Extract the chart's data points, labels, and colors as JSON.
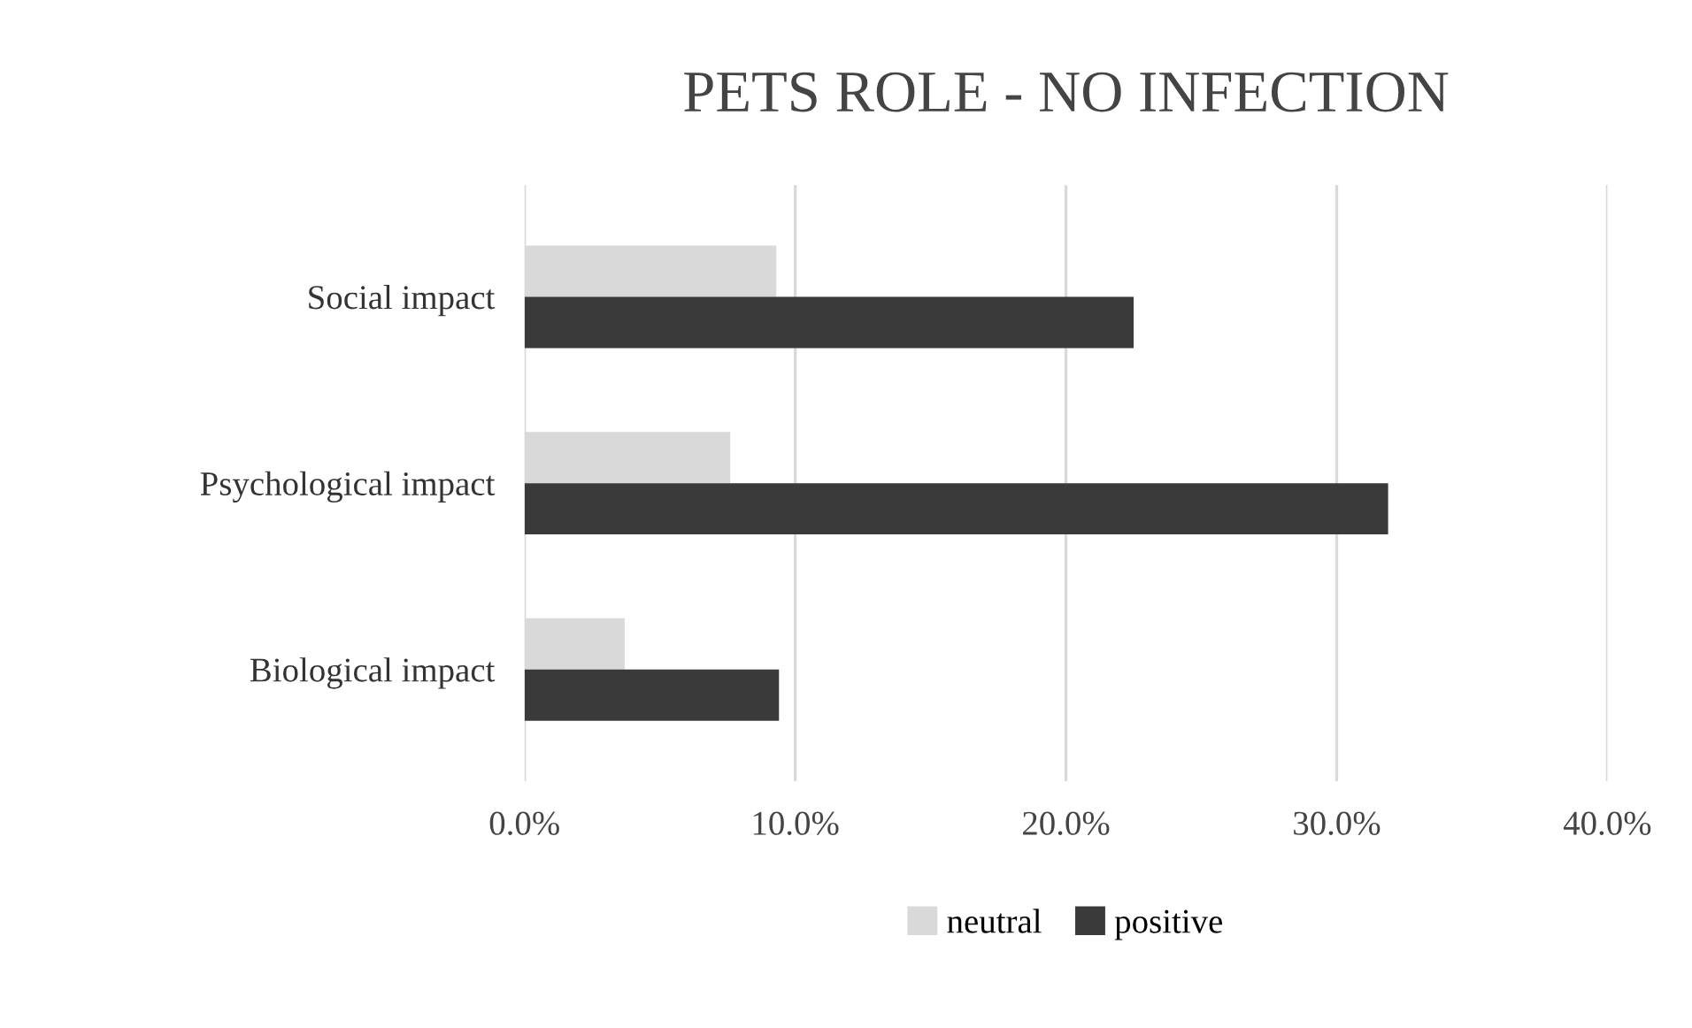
{
  "chart_data": {
    "type": "bar",
    "orientation": "horizontal",
    "title": "PETS ROLE - NO INFECTION",
    "categories": [
      "Social impact",
      "Psychological impact",
      "Biological impact"
    ],
    "series": [
      {
        "name": "neutral",
        "color": "#d9d9d9",
        "values": [
          9.3,
          7.6,
          3.7
        ]
      },
      {
        "name": "positive",
        "color": "#3a3a3a",
        "values": [
          22.5,
          31.9,
          9.4
        ]
      }
    ],
    "xlim": [
      0,
      40
    ],
    "xticks": [
      {
        "value": 0,
        "label": "0.0%"
      },
      {
        "value": 10,
        "label": "10.0%"
      },
      {
        "value": 20,
        "label": "20.0%"
      },
      {
        "value": 30,
        "label": "30.0%"
      },
      {
        "value": 40,
        "label": "40.0%"
      }
    ],
    "grid": "x",
    "legend": "bottom"
  }
}
